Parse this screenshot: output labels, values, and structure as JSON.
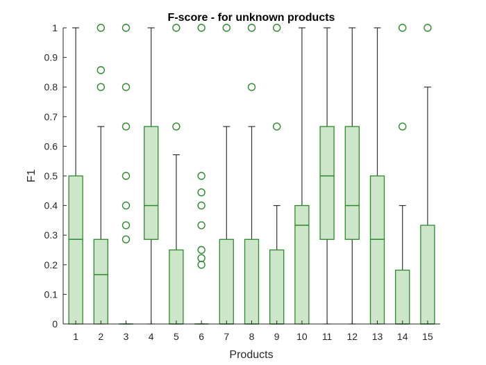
{
  "chart_data": {
    "type": "boxplot",
    "title": "F-score - for unknown products",
    "xlabel": "Products",
    "ylabel": "F1",
    "ylim": [
      0,
      1
    ],
    "yticks": [
      0,
      0.1,
      0.2,
      0.3,
      0.4,
      0.5,
      0.6,
      0.7,
      0.8,
      0.9,
      1
    ],
    "ytick_labels": [
      "0",
      "0.1",
      "0.2",
      "0.3",
      "0.4",
      "0.5",
      "0.6",
      "0.7",
      "0.8",
      "0.9",
      "1"
    ],
    "categories": [
      "1",
      "2",
      "3",
      "4",
      "5",
      "6",
      "7",
      "8",
      "9",
      "10",
      "11",
      "12",
      "13",
      "14",
      "15"
    ],
    "colors": {
      "box_fill": "#cde5c8",
      "box_edge": "#2b8a2b",
      "median": "#2b8a2b",
      "whisker": "#333333",
      "outlier": "#2b8a2b",
      "axis": "#262626"
    },
    "boxes": [
      {
        "q1": 0,
        "median": 0.2857,
        "q3": 0.5,
        "whisker_low": 0,
        "whisker_high": 1,
        "outliers": []
      },
      {
        "q1": 0,
        "median": 0.1667,
        "q3": 0.2857,
        "whisker_low": 0,
        "whisker_high": 0.6667,
        "outliers": [
          0.8,
          0.8571,
          1
        ]
      },
      {
        "q1": 0,
        "median": 0,
        "q3": 0,
        "whisker_low": 0,
        "whisker_high": 0,
        "outliers": [
          0.2857,
          0.3333,
          0.4,
          0.5,
          0.6667,
          0.8,
          1
        ]
      },
      {
        "q1": 0.2857,
        "median": 0.4,
        "q3": 0.6667,
        "whisker_low": 0,
        "whisker_high": 1,
        "outliers": []
      },
      {
        "q1": 0,
        "median": 0,
        "q3": 0.25,
        "whisker_low": 0,
        "whisker_high": 0.5714,
        "outliers": [
          0.6667,
          1
        ]
      },
      {
        "q1": 0,
        "median": 0,
        "q3": 0,
        "whisker_low": 0,
        "whisker_high": 0,
        "outliers": [
          0.2,
          0.2222,
          0.25,
          0.3333,
          0.4,
          0.4444,
          0.5,
          1
        ]
      },
      {
        "q1": 0,
        "median": 0,
        "q3": 0.2857,
        "whisker_low": 0,
        "whisker_high": 0.6667,
        "outliers": [
          1
        ]
      },
      {
        "q1": 0,
        "median": 0,
        "q3": 0.2857,
        "whisker_low": 0,
        "whisker_high": 0.6667,
        "outliers": [
          0.8,
          1
        ]
      },
      {
        "q1": 0,
        "median": 0,
        "q3": 0.25,
        "whisker_low": 0,
        "whisker_high": 0.4,
        "outliers": [
          0.6667,
          1
        ]
      },
      {
        "q1": 0,
        "median": 0.3333,
        "q3": 0.4,
        "whisker_low": 0,
        "whisker_high": 1,
        "outliers": []
      },
      {
        "q1": 0.2857,
        "median": 0.5,
        "q3": 0.6667,
        "whisker_low": 0,
        "whisker_high": 1,
        "outliers": []
      },
      {
        "q1": 0.2857,
        "median": 0.4,
        "q3": 0.6667,
        "whisker_low": 0,
        "whisker_high": 1,
        "outliers": []
      },
      {
        "q1": 0,
        "median": 0.2857,
        "q3": 0.5,
        "whisker_low": 0,
        "whisker_high": 1,
        "outliers": []
      },
      {
        "q1": 0,
        "median": 0,
        "q3": 0.1818,
        "whisker_low": 0,
        "whisker_high": 0.4,
        "outliers": [
          0.6667,
          1
        ]
      },
      {
        "q1": 0,
        "median": 0,
        "q3": 0.3333,
        "whisker_low": 0,
        "whisker_high": 0.8,
        "outliers": [
          1
        ]
      }
    ]
  }
}
